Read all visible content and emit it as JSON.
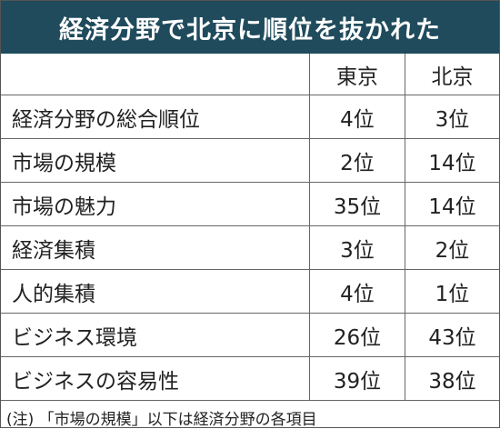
{
  "header": {
    "title": "経済分野で北京に順位を抜かれた"
  },
  "table": {
    "columns": [
      "東京",
      "北京"
    ],
    "rows": [
      [
        "経済分野の総合順位",
        "4位",
        "3位"
      ],
      [
        "市場の規模",
        "2位",
        "14位"
      ],
      [
        "市場の魅力",
        "35位",
        "14位"
      ],
      [
        "経済集積",
        "3位",
        "2位"
      ],
      [
        "人的集積",
        "4位",
        "1位"
      ],
      [
        "ビジネス環境",
        "26位",
        "43位"
      ],
      [
        "ビジネスの容易性",
        "39位",
        "38位"
      ]
    ]
  },
  "footnote": "(注) 「市場の規模」以下は経済分野の各項目"
}
